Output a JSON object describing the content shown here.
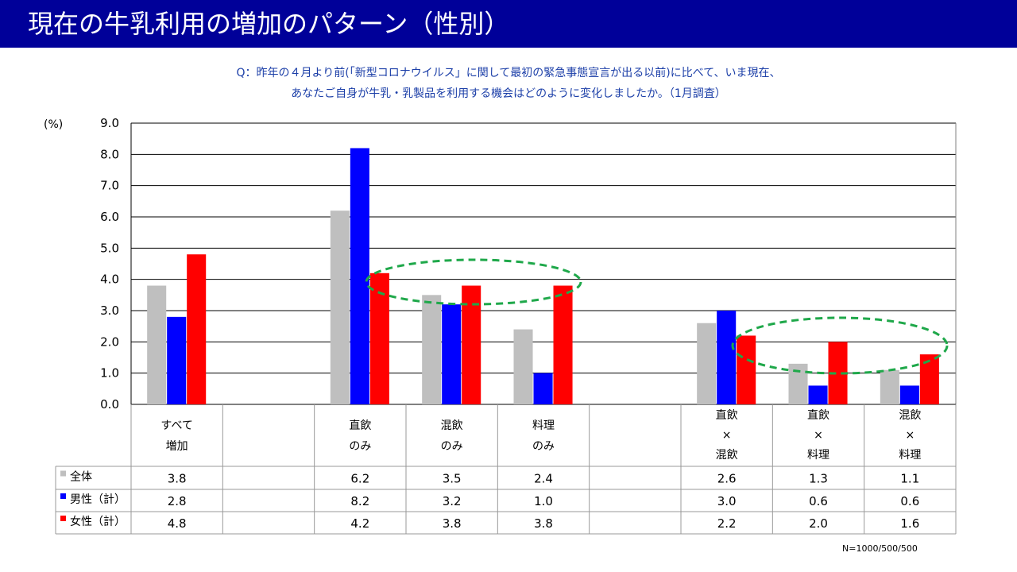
{
  "title": "現在の牛乳利用の増加のパターン（性別）",
  "question": {
    "line1": "Q：昨年の４月より前(「新型コロナウイルス」に関して最初の緊急事態宣言が出る以前)に比べて、いま現在、",
    "line2": "あなたご自身が牛乳・乳製品を利用する機会はどのように変化しましたか。（1月調査）"
  },
  "footnote": "N=1000/500/500",
  "chart_data": {
    "type": "bar",
    "ylabel": "(%)",
    "ylim": [
      0,
      9
    ],
    "yticks": [
      "0.0",
      "1.0",
      "2.0",
      "3.0",
      "4.0",
      "5.0",
      "6.0",
      "7.0",
      "8.0",
      "9.0"
    ],
    "grid": true,
    "categories": [
      [
        "すべて",
        "増加"
      ],
      [],
      [
        "直飲",
        "のみ"
      ],
      [
        "混飲",
        "のみ"
      ],
      [
        "料理",
        "のみ"
      ],
      [],
      [
        "直飲",
        "×",
        "混飲"
      ],
      [
        "直飲",
        "×",
        "料理"
      ],
      [
        "混飲",
        "×",
        "料理"
      ]
    ],
    "series": [
      {
        "name": "全体",
        "color": "#bfbfbf",
        "values": [
          3.8,
          null,
          6.2,
          3.5,
          2.4,
          null,
          2.6,
          1.3,
          1.1
        ]
      },
      {
        "name": "男性（計）",
        "color": "#0000ff",
        "values": [
          2.8,
          null,
          8.2,
          3.2,
          1.0,
          null,
          3.0,
          0.6,
          0.6
        ]
      },
      {
        "name": "女性（計）",
        "color": "#ff0000",
        "values": [
          4.8,
          null,
          4.2,
          3.8,
          3.8,
          null,
          2.2,
          2.0,
          1.6
        ]
      }
    ],
    "table_values": [
      [
        "3.8",
        "",
        "6.2",
        "3.5",
        "2.4",
        "",
        "2.6",
        "1.3",
        "1.1"
      ],
      [
        "2.8",
        "",
        "8.2",
        "3.2",
        "1.0",
        "",
        "3.0",
        "0.6",
        "0.6"
      ],
      [
        "4.8",
        "",
        "4.2",
        "3.8",
        "3.8",
        "",
        "2.2",
        "2.0",
        "1.6"
      ]
    ],
    "highlight_color": "#1fa84a"
  }
}
